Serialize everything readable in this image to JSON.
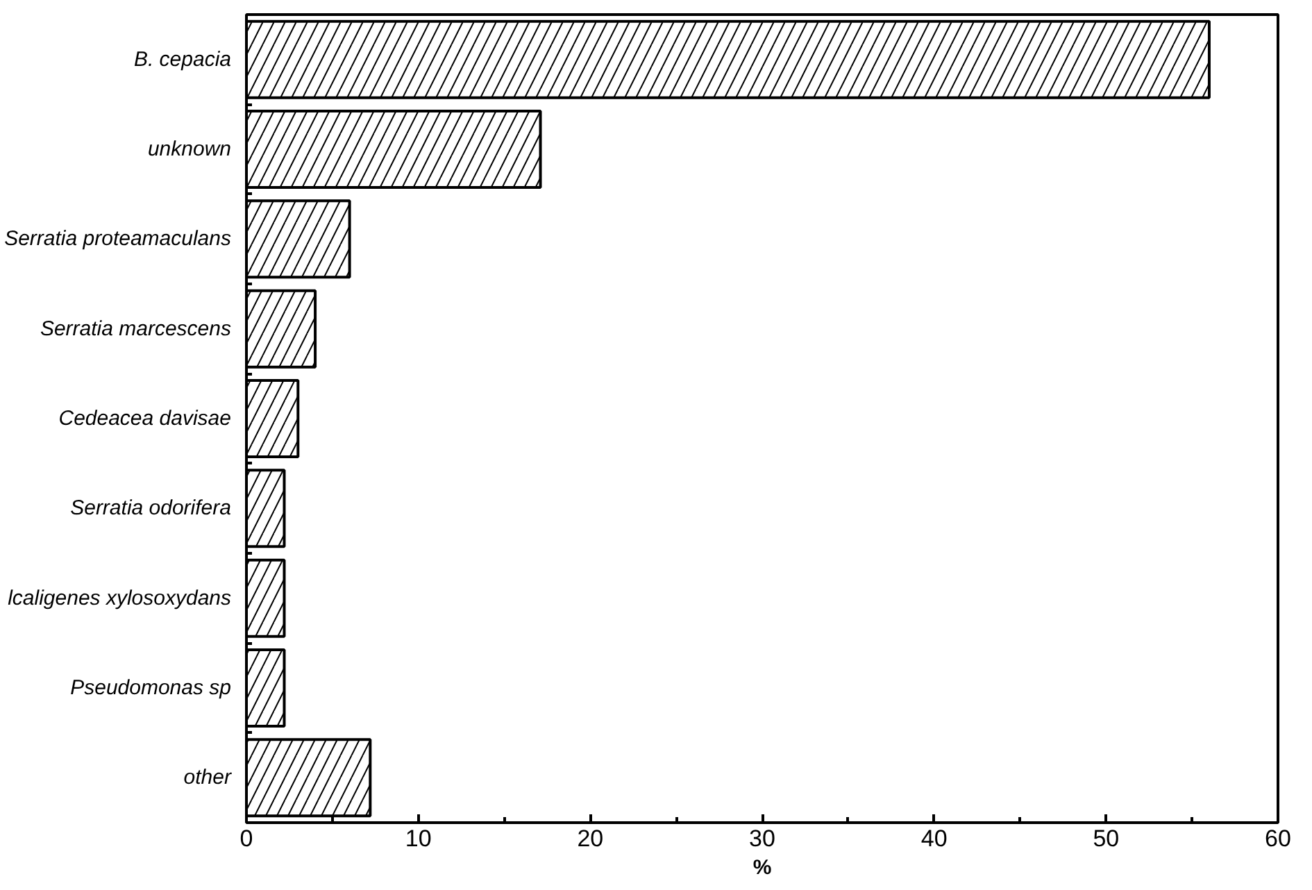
{
  "chart_data": {
    "type": "bar",
    "orientation": "horizontal",
    "xlabel": "%",
    "categories": [
      "B. cepacia",
      "unknown",
      "Serratia proteamaculans",
      "Serratia marcescens",
      "Cedeacea davisae",
      "Serratia odorifera",
      "lcaligenes xylosoxydans",
      "Pseudomonas sp",
      "other"
    ],
    "values": [
      56,
      17.1,
      6,
      4,
      3,
      2.2,
      2.2,
      2.2,
      7.2
    ],
    "color": "#ffffff",
    "xlim": [
      0,
      60
    ],
    "xticks": [
      0,
      {
        "value": 5,
        "label": null
      },
      10,
      {
        "value": 15,
        "label": null
      },
      20,
      {
        "value": 25,
        "label": null
      },
      30,
      {
        "value": 35,
        "label": null
      },
      40,
      {
        "value": 45,
        "label": null
      },
      50,
      {
        "value": 55,
        "label": null
      },
      60
    ],
    "grid": false
  }
}
